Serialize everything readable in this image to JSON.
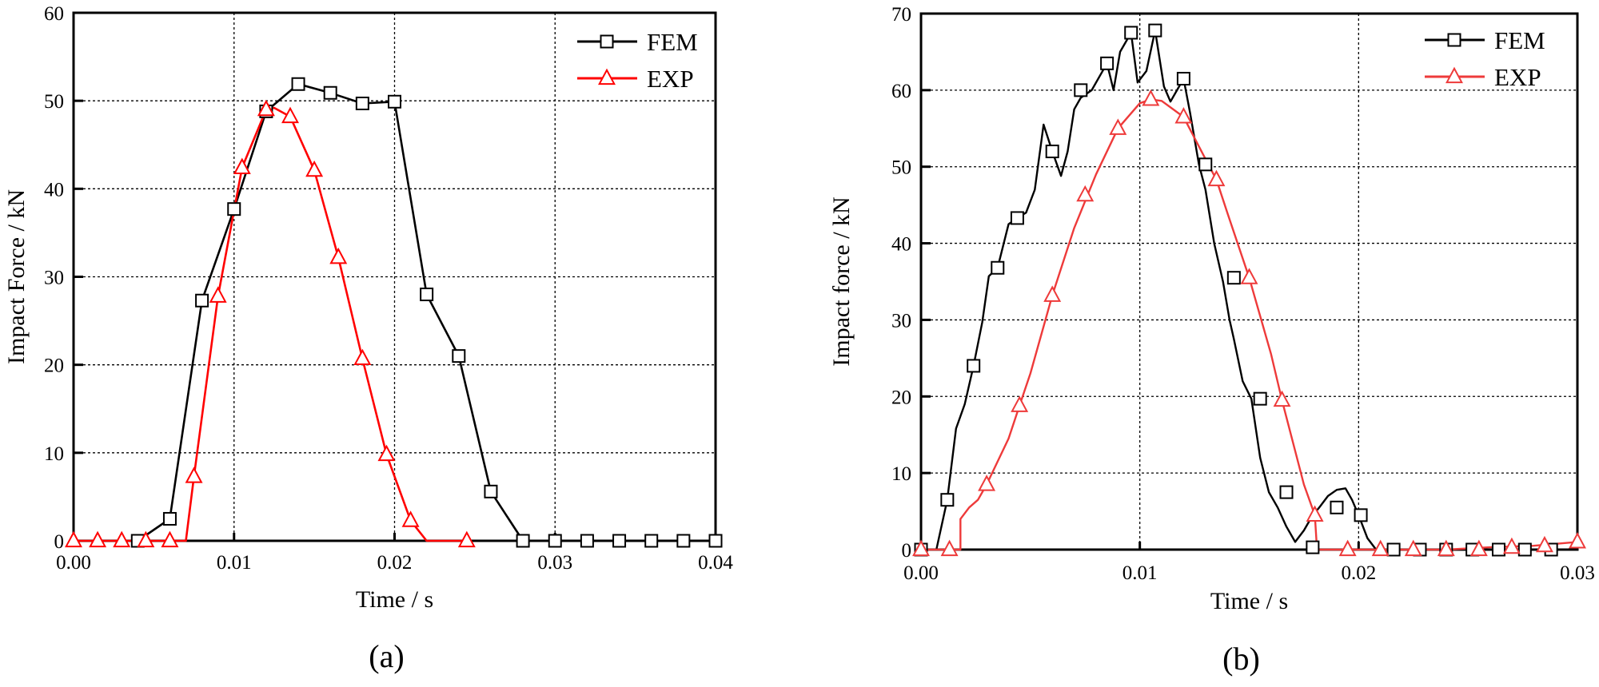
{
  "figure": {
    "panels": [
      {
        "id": "a",
        "caption": "(a)",
        "xlabel": "Time / s",
        "ylabel": "Impact Force / kN",
        "xticks": [
          "0.00",
          "0.01",
          "0.02",
          "0.03",
          "0.04"
        ],
        "yticks": [
          "0",
          "10",
          "20",
          "30",
          "40",
          "50",
          "60"
        ],
        "legend": [
          {
            "label": "FEM"
          },
          {
            "label": "EXP"
          }
        ]
      },
      {
        "id": "b",
        "caption": "(b)",
        "xlabel": "Time / s",
        "ylabel": "Impact force / kN",
        "xticks": [
          "0.00",
          "0.01",
          "0.02",
          "0.03"
        ],
        "yticks": [
          "0",
          "10",
          "20",
          "30",
          "40",
          "50",
          "60",
          "70"
        ],
        "legend": [
          {
            "label": "FEM"
          },
          {
            "label": "EXP"
          }
        ]
      }
    ]
  },
  "colors": {
    "fem": "#000000",
    "exp": "#ff0000",
    "exp_b": "#ee3a3a"
  },
  "chart_data": [
    {
      "type": "line",
      "title": "(a)",
      "xlabel": "Time / s",
      "ylabel": "Impact Force / kN",
      "xlim": [
        0,
        0.04
      ],
      "ylim": [
        0,
        60
      ],
      "grid": true,
      "legend_position": "upper right",
      "series": [
        {
          "name": "FEM",
          "color": "#000000",
          "marker": "square",
          "x": [
            0.004,
            0.006,
            0.008,
            0.01,
            0.012,
            0.014,
            0.016,
            0.018,
            0.02,
            0.022,
            0.024,
            0.026,
            0.028,
            0.03,
            0.032,
            0.034,
            0.036,
            0.038,
            0.04
          ],
          "y": [
            0.0,
            2.5,
            27.3,
            37.7,
            48.8,
            51.9,
            50.9,
            49.7,
            49.9,
            28.0,
            21.0,
            5.6,
            0.0,
            0.0,
            0.0,
            0.0,
            0.0,
            0.0,
            0.0
          ]
        },
        {
          "name": "EXP",
          "color": "#ff0000",
          "marker": "triangle",
          "x": [
            0.0,
            0.0015,
            0.003,
            0.0045,
            0.006,
            0.007,
            0.0075,
            0.009,
            0.0105,
            0.012,
            0.0125,
            0.0135,
            0.015,
            0.0165,
            0.018,
            0.0195,
            0.021,
            0.022,
            0.0245
          ],
          "y": [
            0.0,
            0.0,
            0.0,
            0.0,
            0.0,
            0.0,
            7.3,
            27.8,
            42.4,
            49.0,
            49.2,
            48.2,
            42.1,
            32.2,
            20.7,
            9.8,
            2.3,
            0.0,
            0.0
          ]
        }
      ]
    },
    {
      "type": "line",
      "title": "(b)",
      "xlabel": "Time / s",
      "ylabel": "Impact force / kN",
      "xlim": [
        0,
        0.03
      ],
      "ylim": [
        0,
        70
      ],
      "grid": true,
      "legend_position": "upper right",
      "series": [
        {
          "name": "FEM",
          "color": "#000000",
          "marker": "square",
          "x": [
            0.0,
            0.0007,
            0.0012,
            0.0016,
            0.002,
            0.0024,
            0.0028,
            0.0031,
            0.0035,
            0.004,
            0.0044,
            0.0048,
            0.0052,
            0.0056,
            0.006,
            0.0064,
            0.0067,
            0.007,
            0.0073,
            0.0078,
            0.0082,
            0.0085,
            0.0088,
            0.0091,
            0.0094,
            0.0096,
            0.0099,
            0.0103,
            0.0107,
            0.0111,
            0.0114,
            0.0118,
            0.012,
            0.0123,
            0.0127,
            0.013,
            0.0134,
            0.0138,
            0.0141,
            0.0143,
            0.0147,
            0.0151,
            0.0155,
            0.0159,
            0.0163,
            0.0167,
            0.0171,
            0.0175,
            0.0179,
            0.0182,
            0.0186,
            0.019,
            0.0194,
            0.0197,
            0.02,
            0.0204,
            0.0208,
            0.0212,
            0.0216,
            0.023,
            0.03
          ],
          "y": [
            0.0,
            0.0,
            6.5,
            15.8,
            19.0,
            24.0,
            29.7,
            35.7,
            36.8,
            42.5,
            43.3,
            44.0,
            47.0,
            55.5,
            52.0,
            48.8,
            52.0,
            57.5,
            59.0,
            60.0,
            62.0,
            63.5,
            60.0,
            65.0,
            66.5,
            67.5,
            61.0,
            62.5,
            67.8,
            60.5,
            58.5,
            60.5,
            61.5,
            57.0,
            50.3,
            47.0,
            40.0,
            35.0,
            30.0,
            27.5,
            22.0,
            19.7,
            12.0,
            7.5,
            5.5,
            3.0,
            1.0,
            2.5,
            4.5,
            5.5,
            7.0,
            7.8,
            8.0,
            6.5,
            4.5,
            1.5,
            0.0,
            0.0,
            0.0,
            0.0,
            0.0
          ]
        },
        {
          "name": "EXP",
          "color": "#ee3a3a",
          "marker": "triangle",
          "x": [
            0.0,
            0.0015,
            0.0018,
            0.0018,
            0.0022,
            0.0026,
            0.003,
            0.004,
            0.0045,
            0.005,
            0.006,
            0.007,
            0.008,
            0.009,
            0.01,
            0.0105,
            0.011,
            0.012,
            0.013,
            0.0135,
            0.014,
            0.015,
            0.016,
            0.0165,
            0.0175,
            0.018,
            0.0181,
            0.019,
            0.02,
            0.024,
            0.026,
            0.028,
            0.03
          ],
          "y": [
            0.0,
            0.0,
            0.0,
            4.0,
            5.5,
            6.5,
            8.5,
            14.5,
            18.8,
            23.0,
            33.2,
            42.0,
            49.0,
            55.0,
            58.3,
            58.8,
            58.6,
            56.5,
            51.0,
            48.3,
            44.0,
            35.5,
            25.5,
            19.5,
            8.5,
            4.5,
            0.0,
            0.0,
            0.0,
            0.0,
            0.3,
            0.5,
            1.0
          ]
        }
      ]
    }
  ]
}
